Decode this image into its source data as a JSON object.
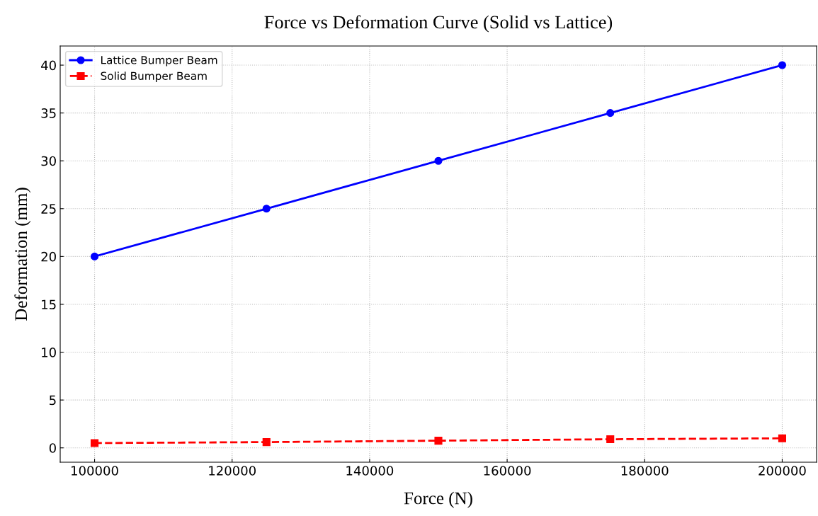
{
  "chart_data": {
    "type": "line",
    "title": "Force vs Deformation Curve (Solid vs Lattice)",
    "xlabel": "Force (N)",
    "ylabel": "Deformation (mm)",
    "x": [
      100000,
      125000,
      150000,
      175000,
      200000
    ],
    "series": [
      {
        "name": "Lattice Bumper Beam",
        "color": "#0000ff",
        "values": [
          20,
          25,
          30,
          35,
          40
        ],
        "marker": "circle",
        "line_style": "solid"
      },
      {
        "name": "Solid Bumper Beam",
        "color": "#ff0000",
        "values": [
          0.5,
          0.6,
          0.75,
          0.9,
          1.0
        ],
        "marker": "square",
        "line_style": "dashed"
      }
    ],
    "xlim": [
      95000,
      205000
    ],
    "xticks": [
      100000,
      120000,
      140000,
      160000,
      180000,
      200000
    ],
    "ylim": [
      -1.5,
      42
    ],
    "yticks": [
      0,
      5,
      10,
      15,
      20,
      25,
      30,
      35,
      40
    ],
    "grid": true,
    "legend": "top left"
  }
}
